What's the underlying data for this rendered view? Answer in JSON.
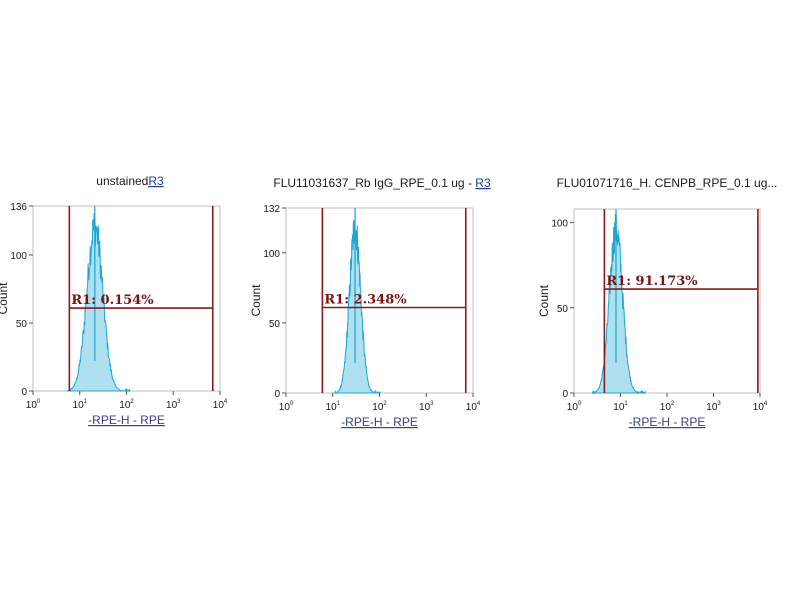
{
  "chart_data": [
    {
      "type": "area",
      "title": "unstained",
      "title_link": "R3",
      "xlabel": "-RPE-H - RPE",
      "ylabel": "Count",
      "x_scale": "log",
      "xlim": [
        1,
        10000
      ],
      "x_ticks": [
        "10",
        "10",
        "10",
        "10",
        "10"
      ],
      "ylim": [
        0,
        136
      ],
      "y_ticks": [
        "136",
        "100",
        "50",
        "0"
      ],
      "y_tick_values": [
        136,
        100,
        50,
        0
      ],
      "histogram": {
        "peak_x": 21,
        "peak_count": 136,
        "log_sd": 0.17
      },
      "gate": {
        "name": "R1",
        "label": "R1: 0.154%",
        "x_start": 6,
        "x_end": 7000,
        "level": 61,
        "percent": 0.154
      }
    },
    {
      "type": "area",
      "title": "FLU11031637_Rb IgG_RPE_0.1 ug - ",
      "title_link": "R3",
      "xlabel": "-RPE-H - RPE",
      "ylabel": "Count",
      "x_scale": "log",
      "xlim": [
        1,
        10000
      ],
      "x_ticks": [
        "10",
        "10",
        "10",
        "10",
        "10"
      ],
      "ylim": [
        0,
        132
      ],
      "y_ticks": [
        "132",
        "100",
        "50",
        "0"
      ],
      "y_tick_values": [
        132,
        100,
        50,
        0
      ],
      "histogram": {
        "peak_x": 30,
        "peak_count": 132,
        "log_sd": 0.12
      },
      "gate": {
        "name": "R1",
        "label": "R1: 2.348%",
        "x_start": 6,
        "x_end": 7000,
        "level": 61,
        "percent": 2.348
      }
    },
    {
      "type": "area",
      "title": "FLU01071716_H. CENPB_RPE_0.1 ug...",
      "title_link": "",
      "xlabel": "-RPE-H - RPE",
      "ylabel": "Count",
      "x_scale": "log",
      "xlim": [
        1,
        10000
      ],
      "x_ticks": [
        "10",
        "10",
        "10",
        "10",
        "10"
      ],
      "ylim": [
        0,
        108
      ],
      "y_ticks": [
        "100",
        "50",
        "0"
      ],
      "y_tick_values": [
        100,
        50,
        0
      ],
      "histogram": {
        "peak_x": 8,
        "peak_count": 108,
        "log_sd": 0.14
      },
      "gate": {
        "name": "R1",
        "label": "R1: 91.173%",
        "x_start": 4.5,
        "x_end": 9000,
        "level": 61,
        "percent": 91.173
      }
    }
  ],
  "colors": {
    "histogram": "#1aa6d4",
    "gate": "#8b1a1a",
    "frame": "#bfbfbf",
    "axis_label": "#3a3f8f"
  }
}
